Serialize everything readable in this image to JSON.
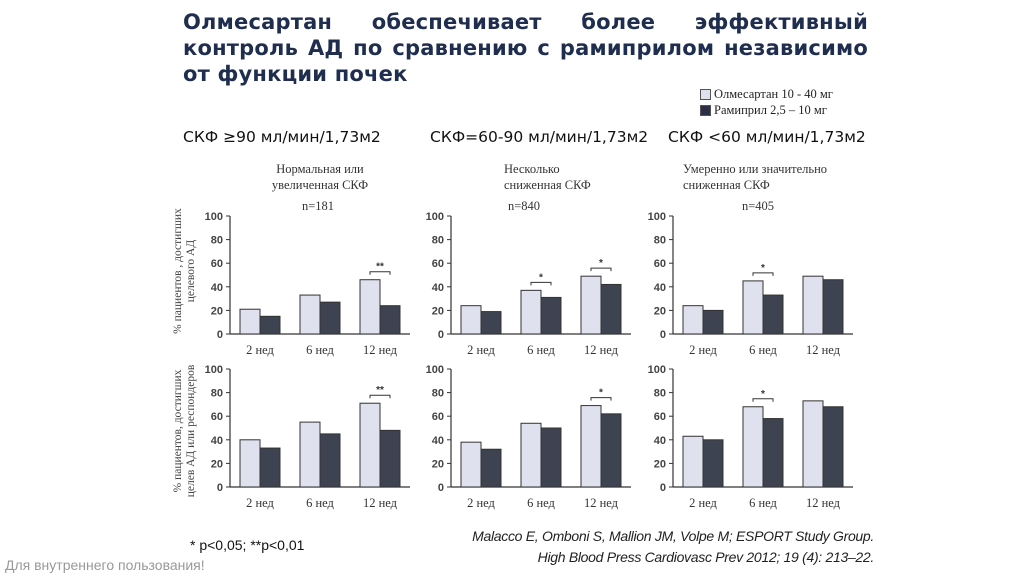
{
  "title": "Олмесартан обеспечивает более эффективный контроль АД по сравнению с рамиприлом независимо от функции почек",
  "legend": [
    {
      "label": "Олмесартан 10 - 40 мг",
      "color": "#dfe2ee"
    },
    {
      "label": "Рамиприл 2,5 – 10 мг",
      "color": "#3d4350"
    }
  ],
  "columns": [
    {
      "heading": "СКФ ≥90 мл/мин/1,73м2",
      "subtitle_1": "Нормальная или",
      "subtitle_2": "увеличенная СКФ",
      "n": "n=181"
    },
    {
      "heading": "СКФ=60-90 мл/мин/1,73м2",
      "subtitle_1": "Несколько",
      "subtitle_2": "сниженная СКФ",
      "n": "n=840"
    },
    {
      "heading": "СКФ <60 мл/мин/1,73м2",
      "subtitle_1": "Умеренно или значительно",
      "subtitle_2": "сниженная СКФ",
      "n": "n=405"
    }
  ],
  "ylabels": {
    "top_1": "% пациентов , достигших",
    "top_2": "целевого АД",
    "bottom_1": "% пациентов, достигших",
    "bottom_2": "целев АД или респондеров"
  },
  "chart_data": [
    {
      "type": "bar",
      "row": "top",
      "column": 1,
      "categories": [
        "2 нед",
        "6 нед",
        "12 нед"
      ],
      "ylim": [
        0,
        100
      ],
      "yticks": [
        0,
        20,
        40,
        60,
        80,
        100
      ],
      "series": [
        {
          "name": "Олмесартан 10 - 40 мг",
          "values": [
            21,
            33,
            46
          ]
        },
        {
          "name": "Рамиприл 2,5 – 10 мг",
          "values": [
            15,
            27,
            24
          ]
        }
      ],
      "significance": [
        "",
        "",
        "**"
      ]
    },
    {
      "type": "bar",
      "row": "top",
      "column": 2,
      "categories": [
        "2 нед",
        "6 нед",
        "12 нед"
      ],
      "ylim": [
        0,
        100
      ],
      "yticks": [
        0,
        20,
        40,
        60,
        80,
        100
      ],
      "series": [
        {
          "name": "Олмесартан 10 - 40 мг",
          "values": [
            24,
            37,
            49
          ]
        },
        {
          "name": "Рамиприл 2,5 – 10 мг",
          "values": [
            19,
            31,
            42
          ]
        }
      ],
      "significance": [
        "",
        "*",
        "*"
      ]
    },
    {
      "type": "bar",
      "row": "top",
      "column": 3,
      "categories": [
        "2 нед",
        "6 нед",
        "12 нед"
      ],
      "ylim": [
        0,
        100
      ],
      "yticks": [
        0,
        20,
        40,
        60,
        80,
        100
      ],
      "series": [
        {
          "name": "Олмесартан 10 - 40 мг",
          "values": [
            24,
            45,
            49
          ]
        },
        {
          "name": "Рамиприл 2,5 – 10 мг",
          "values": [
            20,
            33,
            46
          ]
        }
      ],
      "significance": [
        "",
        "*",
        ""
      ]
    },
    {
      "type": "bar",
      "row": "bottom",
      "column": 1,
      "categories": [
        "2 нед",
        "6 нед",
        "12 нед"
      ],
      "ylim": [
        0,
        100
      ],
      "yticks": [
        0,
        20,
        40,
        60,
        80,
        100
      ],
      "series": [
        {
          "name": "Олмесартан 10 - 40 мг",
          "values": [
            40,
            55,
            71
          ]
        },
        {
          "name": "Рамиприл 2,5 – 10 мг",
          "values": [
            33,
            45,
            48
          ]
        }
      ],
      "significance": [
        "",
        "",
        "**"
      ]
    },
    {
      "type": "bar",
      "row": "bottom",
      "column": 2,
      "categories": [
        "2 нед",
        "6 нед",
        "12 нед"
      ],
      "ylim": [
        0,
        100
      ],
      "yticks": [
        0,
        20,
        40,
        60,
        80,
        100
      ],
      "series": [
        {
          "name": "Олмесартан 10 - 40 мг",
          "values": [
            38,
            54,
            69
          ]
        },
        {
          "name": "Рамиприл 2,5 – 10 мг",
          "values": [
            32,
            50,
            62
          ]
        }
      ],
      "significance": [
        "",
        "",
        "*"
      ]
    },
    {
      "type": "bar",
      "row": "bottom",
      "column": 3,
      "categories": [
        "2 нед",
        "6 нед",
        "12 нед"
      ],
      "ylim": [
        0,
        100
      ],
      "yticks": [
        0,
        20,
        40,
        60,
        80,
        100
      ],
      "series": [
        {
          "name": "Олмесартан 10 - 40 мг",
          "values": [
            43,
            68,
            73
          ]
        },
        {
          "name": "Рамиприл 2,5 – 10 мг",
          "values": [
            40,
            58,
            68
          ]
        }
      ],
      "significance": [
        "",
        "*",
        ""
      ]
    }
  ],
  "footnote": "* p<0,05;  **p<0,01",
  "citation_1": "Malacco E, Omboni S, Mallion JM, Volpe M; ESPORT Study Group.",
  "citation_2": "High Blood Press Cardiovasc Prev 2012; 19 (4): 213–22.",
  "internal_note": "Для внутреннего пользования!"
}
